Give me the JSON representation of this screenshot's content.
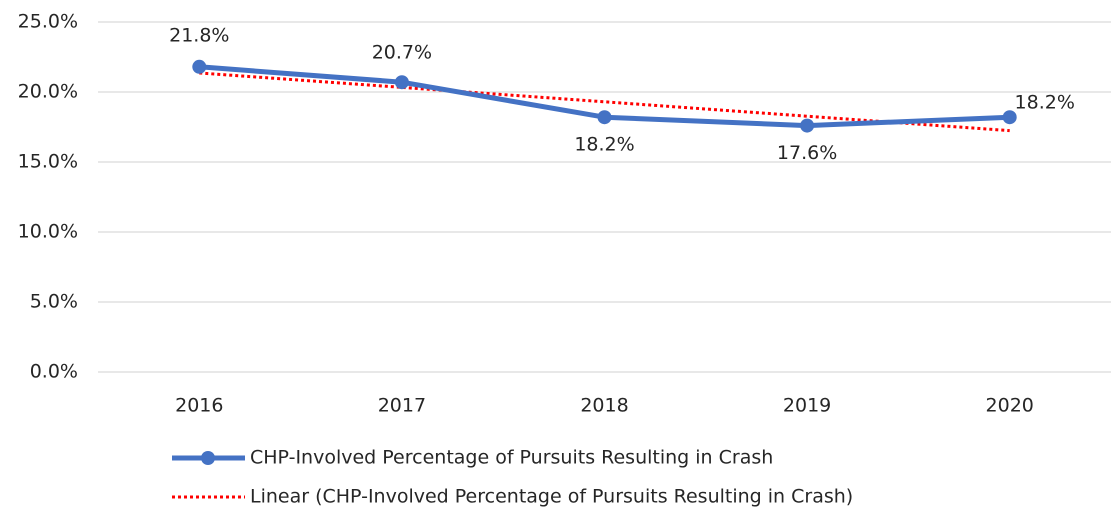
{
  "chart_data": {
    "type": "line",
    "categories": [
      "2016",
      "2017",
      "2018",
      "2019",
      "2020"
    ],
    "series": [
      {
        "name": "CHP-Involved Percentage of Pursuits Resulting in Crash",
        "color": "#4472c4",
        "values": [
          21.8,
          20.7,
          18.2,
          17.6,
          18.2
        ],
        "value_labels": [
          "21.8%",
          "20.7%",
          "18.2%",
          "17.6%",
          "18.2%"
        ]
      },
      {
        "name": "Linear (CHP-Involved Percentage of Pursuits Resulting in Crash)",
        "color": "#ff0000",
        "style": "dotted",
        "values": [
          21.36,
          20.33,
          19.3,
          18.27,
          17.24
        ]
      }
    ],
    "ylim": [
      0,
      25
    ],
    "yticks": [
      {
        "value": 0,
        "label": "0.0%"
      },
      {
        "value": 5,
        "label": "5.0%"
      },
      {
        "value": 10,
        "label": "10.0%"
      },
      {
        "value": 15,
        "label": "15.0%"
      },
      {
        "value": 20,
        "label": "20.0%"
      },
      {
        "value": 25,
        "label": "25.0%"
      }
    ],
    "grid": true,
    "legend": "bottom"
  }
}
